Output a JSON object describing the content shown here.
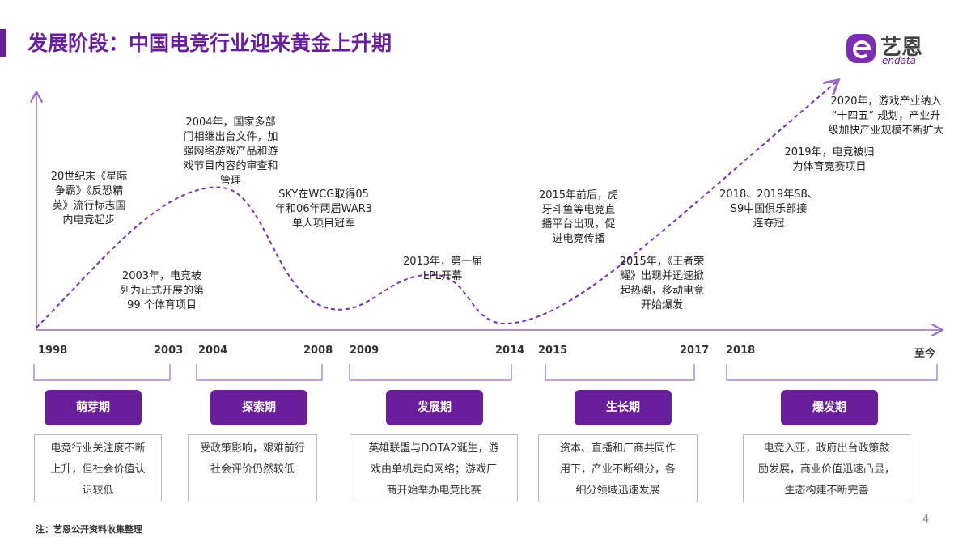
{
  "header": {
    "title": "发展阶段：中国电竞行业迎来黄金上升期"
  },
  "logo": {
    "name": "艺恩",
    "subtitle": "endata"
  },
  "annotations": [
    {
      "lines": [
        "20世纪末《星际",
        "争霸》《反恐精",
        "英》流行标志国",
        "内电竞起步"
      ]
    },
    {
      "lines": [
        "2004年，国家多部",
        "门相继出台文件，加",
        "强网络游戏产品和游",
        "戏节目内容的审查和",
        "管理"
      ]
    },
    {
      "lines": [
        "SKY在WCG取得05",
        "年和06年两届WAR3",
        "单人项目冠军"
      ]
    },
    {
      "lines": [
        "2003年，电竞被",
        "列为正式开展的第",
        "99 个体育项目"
      ]
    },
    {
      "lines": [
        "2013年，第一届",
        "LPL开幕"
      ]
    },
    {
      "lines": [
        "2015年前后，虎",
        "牙斗鱼等电竞直",
        "播平台出现，促",
        "进电竞传播"
      ]
    },
    {
      "lines": [
        "2015年，《王者荣",
        "耀》出现并迅速掀",
        "起热潮，移动电竞",
        "开始爆发"
      ]
    },
    {
      "lines": [
        "2018、2019年S8、",
        "S9中国俱乐部接",
        "连夺冠"
      ]
    },
    {
      "lines": [
        "2019年，电竞被归",
        "为体育竞赛项目"
      ]
    },
    {
      "lines": [
        "2020年，游戏产业纳入",
        "“十四五” 规划，产业升",
        "级加快产业规模不断扩大"
      ]
    }
  ],
  "years": [
    "1998",
    "2003",
    "2004",
    "2008",
    "2009",
    "2014",
    "2015",
    "2017",
    "2018",
    "至今"
  ],
  "phases": [
    {
      "name": "萌芽期",
      "description": [
        "电竞行业关注度不断",
        "上升，但社会价值认",
        "识较低"
      ]
    },
    {
      "name": "探索期",
      "description": [
        "受政策影响，艰难前行",
        "社会评价仍然较低"
      ]
    },
    {
      "name": "发展期",
      "description": [
        "英雄联盟与DOTA2诞生，游",
        "戏由单机走向网络；游戏厂",
        "商开始举办电竞比赛"
      ]
    },
    {
      "name": "生长期",
      "description": [
        "资本、直播和厂商共同作",
        "用下，产业不断细分，各",
        "细分领域迅速发展"
      ]
    },
    {
      "name": "爆发期",
      "description": [
        "电竞入亚，政府出台政策鼓",
        "励发展，商业价值迅速凸显，",
        "生态构建不断完善"
      ]
    }
  ],
  "footnote": "注：艺恩公开资料收集整理",
  "page_number": "4"
}
